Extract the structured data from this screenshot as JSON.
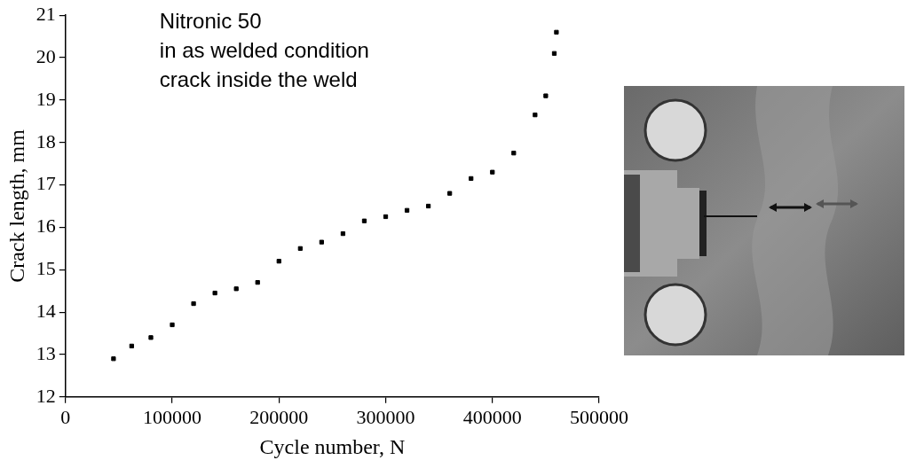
{
  "chart_data": {
    "type": "scatter",
    "annotations": [
      "Nitronic 50",
      "in as welded condition",
      "crack inside the weld"
    ],
    "x_label": "Cycle number, N",
    "y_label": "Crack length, mm",
    "x": [
      45000,
      62000,
      80000,
      100000,
      120000,
      140000,
      160000,
      180000,
      200000,
      220000,
      240000,
      260000,
      280000,
      300000,
      320000,
      340000,
      360000,
      380000,
      400000,
      420000,
      440000,
      450000,
      458000,
      460000
    ],
    "values": [
      12.9,
      13.2,
      13.4,
      13.7,
      14.2,
      14.45,
      14.55,
      14.7,
      15.2,
      15.5,
      15.65,
      15.85,
      16.15,
      16.25,
      16.4,
      16.5,
      16.8,
      17.15,
      17.3,
      17.75,
      18.65,
      19.1,
      20.1,
      20.6
    ],
    "color": "#000000",
    "marker": "square",
    "xlim": [
      0,
      500000
    ],
    "xticks": [
      0,
      100000,
      200000,
      300000,
      400000,
      500000
    ],
    "ylim": [
      12,
      21
    ],
    "yticks": [
      12,
      13,
      14,
      15,
      16,
      17,
      18,
      19,
      20,
      21
    ],
    "grid": false
  }
}
